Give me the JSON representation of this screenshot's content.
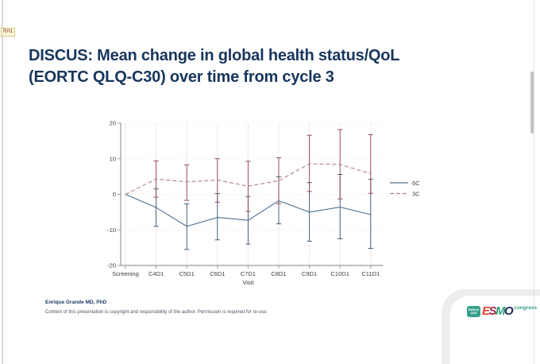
{
  "page": {
    "comment_tag": "RH1",
    "title_line1": "DISCUS: Mean change in global health status/QoL",
    "title_line2": "(EORTC QLQ-C30) over time from cycle 3",
    "title_color": "#17365d",
    "footer": {
      "author": "Enrique Grande MD, PhD",
      "copyright": "Content of this presentation is copyright and responsibility of the author. Permission is required for re-use."
    },
    "logo": {
      "badge_line1": "BERLIN",
      "badge_line2": "2025",
      "letters": [
        "E",
        "S",
        "M",
        "O"
      ],
      "letter_colors": [
        "#e2402c",
        "#a3254a",
        "#2f9e7d",
        "#20295c"
      ],
      "suffix": "congress",
      "accent_color": "#35a08b"
    }
  },
  "chart_data": {
    "type": "line",
    "title": "",
    "xlabel": "Visit",
    "ylabel": "",
    "ylim": [
      -20,
      20
    ],
    "yticks": [
      -20,
      -10,
      0,
      10,
      20
    ],
    "grid": "vertical-faint-plus-dotted-horizontal",
    "legend_position": "right",
    "axis_color": "#9a9a9a",
    "grid_color": "#f1e6ea",
    "hgrid_color": "#ece1e6",
    "text_color": "#3c3c3c",
    "categories": [
      "Screening",
      "C4D1",
      "C5D1",
      "C6D1",
      "C7D1",
      "C8D1",
      "C9D1",
      "C10D1",
      "C11D1"
    ],
    "series": [
      {
        "name": "6C",
        "style": "solid",
        "color": "#4d7090",
        "err_color": "#35516e",
        "values": [
          0,
          -3.7,
          -9.0,
          -6.5,
          -7.3,
          -1.8,
          -5.0,
          -3.6,
          -5.7
        ],
        "err_lo": [
          null,
          -9.0,
          -15.5,
          -12.8,
          -14.0,
          -8.3,
          -13.2,
          -12.5,
          -15.2
        ],
        "err_hi": [
          null,
          1.5,
          -2.7,
          0.2,
          -0.6,
          4.9,
          3.3,
          5.6,
          4.2
        ]
      },
      {
        "name": "3C",
        "style": "dashed",
        "color": "#b17e93",
        "err_color": "#8e3e52",
        "values": [
          0,
          4.3,
          3.5,
          4.0,
          2.3,
          3.8,
          8.6,
          8.4,
          5.8
        ],
        "err_lo": [
          null,
          -0.8,
          -1.7,
          -2.2,
          -4.8,
          -2.6,
          0.8,
          -1.3,
          0.3
        ],
        "err_hi": [
          null,
          9.4,
          8.3,
          10.0,
          9.3,
          10.3,
          16.6,
          18.2,
          16.8
        ]
      }
    ]
  }
}
